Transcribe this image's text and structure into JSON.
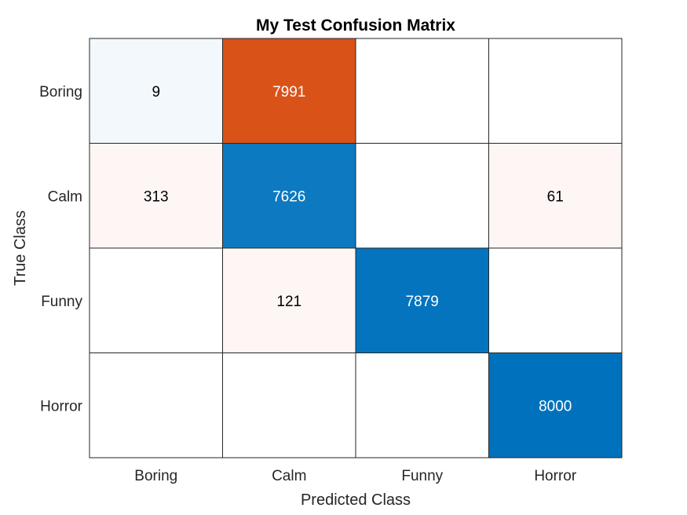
{
  "chart_data": {
    "type": "heatmap",
    "title": "My Test Confusion Matrix",
    "xlabel": "Predicted Class",
    "ylabel": "True Class",
    "x_categories": [
      "Boring",
      "Calm",
      "Funny",
      "Horror"
    ],
    "y_categories": [
      "Boring",
      "Calm",
      "Funny",
      "Horror"
    ],
    "values": [
      [
        9,
        7991,
        0,
        0
      ],
      [
        313,
        7626,
        0,
        61
      ],
      [
        0,
        121,
        7879,
        0
      ],
      [
        0,
        0,
        0,
        8000
      ]
    ],
    "colors": {
      "correct": "#0072bd",
      "incorrect": "#d95319",
      "empty": "#ffffff",
      "grid": "#262626",
      "text_dark": "#000000",
      "text_light": "#ffffff"
    }
  }
}
